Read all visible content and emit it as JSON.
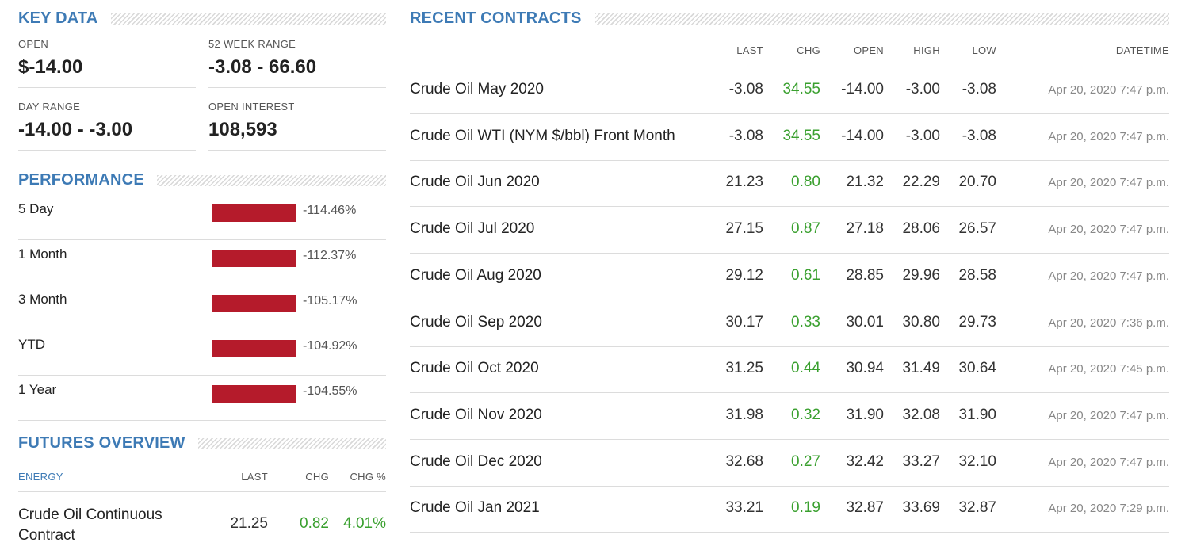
{
  "key_data": {
    "title": "KEY DATA",
    "open_label": "OPEN",
    "open_value": "$-14.00",
    "range52_label": "52 WEEK RANGE",
    "range52_value": "-3.08 - 66.60",
    "day_range_label": "DAY RANGE",
    "day_range_value": "-14.00 - -3.00",
    "open_interest_label": "OPEN INTEREST",
    "open_interest_value": "108,593"
  },
  "performance": {
    "title": "PERFORMANCE",
    "bar_color": "#b51b2b",
    "rows": [
      {
        "label": "5 Day",
        "value": "-114.46%"
      },
      {
        "label": "1 Month",
        "value": "-112.37%"
      },
      {
        "label": "3 Month",
        "value": "-105.17%"
      },
      {
        "label": "YTD",
        "value": "-104.92%"
      },
      {
        "label": "1 Year",
        "value": "-104.55%"
      }
    ]
  },
  "futures_overview": {
    "title": "FUTURES OVERVIEW",
    "col_category": "ENERGY",
    "col_last": "LAST",
    "col_chg": "CHG",
    "col_chg_pct": "CHG %",
    "row": {
      "name": "Crude Oil Continuous Contract",
      "last": "21.25",
      "chg": "0.82",
      "chg_pct": "4.01%"
    }
  },
  "recent_contracts": {
    "title": "RECENT CONTRACTS",
    "headers": {
      "last": "LAST",
      "chg": "CHG",
      "open": "OPEN",
      "high": "HIGH",
      "low": "LOW",
      "datetime": "DATETIME"
    },
    "positive_color": "#3aa02f",
    "rows": [
      {
        "name": "Crude Oil May 2020",
        "last": "-3.08",
        "chg": "34.55",
        "open": "-14.00",
        "high": "-3.00",
        "low": "-3.08",
        "datetime": "Apr 20, 2020 7:47 p.m."
      },
      {
        "name": "Crude Oil WTI (NYM $/bbl) Front Month",
        "last": "-3.08",
        "chg": "34.55",
        "open": "-14.00",
        "high": "-3.00",
        "low": "-3.08",
        "datetime": "Apr 20, 2020 7:47 p.m."
      },
      {
        "name": "Crude Oil Jun 2020",
        "last": "21.23",
        "chg": "0.80",
        "open": "21.32",
        "high": "22.29",
        "low": "20.70",
        "datetime": "Apr 20, 2020 7:47 p.m."
      },
      {
        "name": "Crude Oil Jul 2020",
        "last": "27.15",
        "chg": "0.87",
        "open": "27.18",
        "high": "28.06",
        "low": "26.57",
        "datetime": "Apr 20, 2020 7:47 p.m."
      },
      {
        "name": "Crude Oil Aug 2020",
        "last": "29.12",
        "chg": "0.61",
        "open": "28.85",
        "high": "29.96",
        "low": "28.58",
        "datetime": "Apr 20, 2020 7:47 p.m."
      },
      {
        "name": "Crude Oil Sep 2020",
        "last": "30.17",
        "chg": "0.33",
        "open": "30.01",
        "high": "30.80",
        "low": "29.73",
        "datetime": "Apr 20, 2020 7:36 p.m."
      },
      {
        "name": "Crude Oil Oct 2020",
        "last": "31.25",
        "chg": "0.44",
        "open": "30.94",
        "high": "31.49",
        "low": "30.64",
        "datetime": "Apr 20, 2020 7:45 p.m."
      },
      {
        "name": "Crude Oil Nov 2020",
        "last": "31.98",
        "chg": "0.32",
        "open": "31.90",
        "high": "32.08",
        "low": "31.90",
        "datetime": "Apr 20, 2020 7:47 p.m."
      },
      {
        "name": "Crude Oil Dec 2020",
        "last": "32.68",
        "chg": "0.27",
        "open": "32.42",
        "high": "33.27",
        "low": "32.10",
        "datetime": "Apr 20, 2020 7:47 p.m."
      },
      {
        "name": "Crude Oil Jan 2021",
        "last": "33.21",
        "chg": "0.19",
        "open": "32.87",
        "high": "33.69",
        "low": "32.87",
        "datetime": "Apr 20, 2020 7:29 p.m."
      }
    ]
  }
}
